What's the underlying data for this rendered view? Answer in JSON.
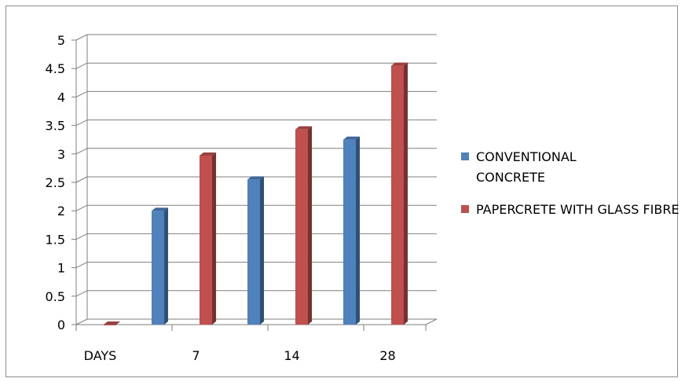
{
  "chart_data": {
    "type": "bar",
    "categories": [
      "DAYS",
      "7",
      "14",
      "28"
    ],
    "series": [
      {
        "name": "CONVENTIONAL CONCRETE",
        "values": [
          0,
          2,
          2.55,
          3.25
        ],
        "color": "#4f81bd"
      },
      {
        "name": "PAPERCRETE WITH GLASS FIBRE",
        "values": [
          0,
          2.97,
          3.43,
          4.55
        ],
        "color": "#c0504d"
      }
    ],
    "bar_positions": [
      [
        0,
        0.5,
        1.5,
        2.5
      ],
      [
        0,
        1,
        2,
        3
      ]
    ],
    "yticks": [
      "0",
      "0.5",
      "1",
      "1.5",
      "2",
      "2.5",
      "3",
      "3.5",
      "4",
      "4.5",
      "5"
    ],
    "ylim": [
      0,
      5
    ],
    "grid": true,
    "legend_position": "right",
    "style": "3d-column"
  }
}
